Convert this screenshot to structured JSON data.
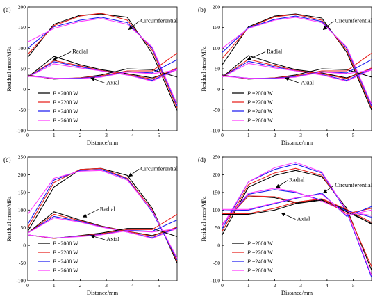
{
  "figure": {
    "y_axis_label": "Residual stress/MPa",
    "x_axis_label": "Distance/mm",
    "legend_var": "P",
    "legend_unit": " W",
    "colors": {
      "p2000": "#000000",
      "p2200": "#e8201c",
      "p2400": "#1d1df0",
      "p2600": "#ff3cff"
    }
  },
  "chart_data": [
    {
      "type": "line",
      "panel_label": "(a)",
      "xlim": [
        0,
        5.7
      ],
      "ylim": [
        -100,
        200
      ],
      "xticks": [
        0,
        1,
        2,
        3,
        4,
        5
      ],
      "yticks": [
        -100,
        -50,
        0,
        50,
        100,
        150,
        200
      ],
      "grid": false,
      "legend_position": "bottom-left",
      "x": [
        0,
        1,
        2,
        2.8,
        3.8,
        4.75,
        5.7
      ],
      "series": [
        {
          "name": "P =2000 W",
          "color": "#000000",
          "group": "Circumferential",
          "values": [
            78,
            158,
            180,
            183,
            175,
            87,
            -52
          ]
        },
        {
          "name": "P =2200 W",
          "color": "#e8201c",
          "group": "Circumferential",
          "values": [
            85,
            155,
            178,
            185,
            168,
            95,
            -45
          ]
        },
        {
          "name": "P =2400 W",
          "color": "#1d1df0",
          "group": "Circumferential",
          "values": [
            100,
            152,
            168,
            175,
            162,
            100,
            -40
          ]
        },
        {
          "name": "P =2600 W",
          "color": "#ff3cff",
          "group": "Circumferential",
          "values": [
            115,
            148,
            165,
            172,
            158,
            103,
            -36
          ]
        },
        {
          "name": "P =2000 W",
          "color": "#000000",
          "group": "Radial",
          "values": [
            30,
            80,
            60,
            48,
            38,
            28,
            48
          ]
        },
        {
          "name": "P =2200 W",
          "color": "#e8201c",
          "group": "Radial",
          "values": [
            30,
            70,
            57,
            46,
            36,
            25,
            52
          ]
        },
        {
          "name": "P =2400 W",
          "color": "#1d1df0",
          "group": "Radial",
          "values": [
            30,
            67,
            55,
            45,
            35,
            22,
            50
          ]
        },
        {
          "name": "P =2600 W",
          "color": "#ff3cff",
          "group": "Radial",
          "values": [
            30,
            62,
            52,
            45,
            35,
            20,
            48
          ]
        },
        {
          "name": "P =2000 W",
          "color": "#000000",
          "group": "Axial",
          "values": [
            35,
            25,
            28,
            35,
            50,
            48,
            30
          ]
        },
        {
          "name": "P =2200 W",
          "color": "#e8201c",
          "group": "Axial",
          "values": [
            34,
            26,
            28,
            33,
            45,
            45,
            88
          ]
        },
        {
          "name": "P =2400 W",
          "color": "#1d1df0",
          "group": "Axial",
          "values": [
            33,
            27,
            27,
            31,
            43,
            40,
            72
          ]
        },
        {
          "name": "P =2600 W",
          "color": "#ff3cff",
          "group": "Axial",
          "values": [
            32,
            27,
            26,
            30,
            42,
            38,
            47
          ]
        }
      ],
      "annotations": [
        {
          "text": "Circumferential",
          "tx": 4.3,
          "ty": 162,
          "ax": 3.85,
          "ay": 145
        },
        {
          "text": "Radial",
          "tx": 1.7,
          "ty": 88,
          "ax": 0.95,
          "ay": 70
        },
        {
          "text": "Axial",
          "tx": 3.0,
          "ty": 12,
          "ax": 2.4,
          "ay": 28
        }
      ]
    },
    {
      "type": "line",
      "panel_label": "(b)",
      "xlim": [
        0,
        5.7
      ],
      "ylim": [
        -100,
        200
      ],
      "xticks": [
        0,
        1,
        2,
        3,
        4,
        5
      ],
      "yticks": [
        -100,
        -50,
        0,
        50,
        100,
        150,
        200
      ],
      "grid": false,
      "legend_position": "bottom-left",
      "x": [
        0,
        1,
        2,
        2.8,
        3.8,
        4.75,
        5.7
      ],
      "series": [
        {
          "name": "P =2000 W",
          "color": "#000000",
          "group": "Circumferential",
          "values": [
            60,
            152,
            178,
            183,
            173,
            90,
            -50
          ]
        },
        {
          "name": "P =2200 W",
          "color": "#e8201c",
          "group": "Circumferential",
          "values": [
            75,
            150,
            176,
            182,
            168,
            95,
            -45
          ]
        },
        {
          "name": "P =2400 W",
          "color": "#1d1df0",
          "group": "Circumferential",
          "values": [
            90,
            150,
            170,
            178,
            165,
            100,
            -40
          ]
        },
        {
          "name": "P =2600 W",
          "color": "#ff3cff",
          "group": "Circumferential",
          "values": [
            100,
            148,
            168,
            175,
            162,
            103,
            -36
          ]
        },
        {
          "name": "P =2000 W",
          "color": "#000000",
          "group": "Radial",
          "values": [
            30,
            82,
            62,
            48,
            40,
            28,
            50
          ]
        },
        {
          "name": "P =2200 W",
          "color": "#e8201c",
          "group": "Radial",
          "values": [
            30,
            73,
            58,
            46,
            38,
            26,
            52
          ]
        },
        {
          "name": "P =2400 W",
          "color": "#1d1df0",
          "group": "Radial",
          "values": [
            30,
            68,
            55,
            45,
            36,
            22,
            50
          ]
        },
        {
          "name": "P =2600 W",
          "color": "#ff3cff",
          "group": "Radial",
          "values": [
            30,
            63,
            52,
            45,
            35,
            20,
            48
          ]
        },
        {
          "name": "P =2000 W",
          "color": "#000000",
          "group": "Axial",
          "values": [
            35,
            25,
            28,
            35,
            50,
            48,
            30
          ]
        },
        {
          "name": "P =2200 W",
          "color": "#e8201c",
          "group": "Axial",
          "values": [
            34,
            26,
            28,
            33,
            45,
            45,
            88
          ]
        },
        {
          "name": "P =2400 W",
          "color": "#1d1df0",
          "group": "Axial",
          "values": [
            33,
            27,
            27,
            31,
            43,
            40,
            72
          ]
        },
        {
          "name": "P =2600 W",
          "color": "#ff3cff",
          "group": "Axial",
          "values": [
            32,
            27,
            26,
            30,
            42,
            38,
            47
          ]
        }
      ],
      "annotations": [
        {
          "text": "Circumferential",
          "tx": 4.3,
          "ty": 162,
          "ax": 3.85,
          "ay": 145
        },
        {
          "text": "Radial",
          "tx": 1.7,
          "ty": 88,
          "ax": 0.95,
          "ay": 72
        },
        {
          "text": "Axial",
          "tx": 3.0,
          "ty": 12,
          "ax": 2.4,
          "ay": 28
        }
      ]
    },
    {
      "type": "line",
      "panel_label": "(c)",
      "xlim": [
        0,
        5.7
      ],
      "ylim": [
        -100,
        250
      ],
      "xticks": [
        0,
        1,
        2,
        3,
        4,
        5
      ],
      "yticks": [
        -100,
        -50,
        0,
        50,
        100,
        150,
        200,
        250
      ],
      "grid": false,
      "legend_position": "bottom-left",
      "x": [
        0,
        1,
        2,
        2.8,
        3.8,
        4.75,
        5.7
      ],
      "series": [
        {
          "name": "P =2000 W",
          "color": "#000000",
          "group": "Circumferential",
          "values": [
            40,
            165,
            215,
            218,
            198,
            105,
            -50
          ]
        },
        {
          "name": "P =2200 W",
          "color": "#e8201c",
          "group": "Circumferential",
          "values": [
            50,
            178,
            215,
            218,
            190,
            100,
            -45
          ]
        },
        {
          "name": "P =2400 W",
          "color": "#1d1df0",
          "group": "Circumferential",
          "values": [
            60,
            185,
            212,
            215,
            188,
            95,
            -40
          ]
        },
        {
          "name": "P =2600 W",
          "color": "#ff3cff",
          "group": "Circumferential",
          "values": [
            88,
            190,
            210,
            212,
            185,
            98,
            -36
          ]
        },
        {
          "name": "P =2000 W",
          "color": "#000000",
          "group": "Radial",
          "values": [
            35,
            95,
            72,
            55,
            40,
            28,
            50
          ]
        },
        {
          "name": "P =2200 W",
          "color": "#e8201c",
          "group": "Radial",
          "values": [
            35,
            88,
            70,
            54,
            40,
            26,
            52
          ]
        },
        {
          "name": "P =2400 W",
          "color": "#1d1df0",
          "group": "Radial",
          "values": [
            35,
            82,
            68,
            53,
            38,
            22,
            50
          ]
        },
        {
          "name": "P =2600 W",
          "color": "#ff3cff",
          "group": "Radial",
          "values": [
            35,
            78,
            66,
            52,
            38,
            20,
            48
          ]
        },
        {
          "name": "P =2000 W",
          "color": "#000000",
          "group": "Axial",
          "values": [
            30,
            20,
            28,
            35,
            48,
            48,
            25
          ]
        },
        {
          "name": "P =2200 W",
          "color": "#e8201c",
          "group": "Axial",
          "values": [
            30,
            20,
            27,
            33,
            45,
            45,
            88
          ]
        },
        {
          "name": "P =2400 W",
          "color": "#1d1df0",
          "group": "Axial",
          "values": [
            30,
            21,
            26,
            31,
            43,
            40,
            72
          ]
        },
        {
          "name": "P =2600 W",
          "color": "#ff3cff",
          "group": "Axial",
          "values": [
            30,
            21,
            25,
            30,
            42,
            38,
            47
          ]
        }
      ],
      "annotations": [
        {
          "text": "Circumferential",
          "tx": 4.3,
          "ty": 212,
          "ax": 3.85,
          "ay": 195
        },
        {
          "text": "Radial",
          "tx": 2.75,
          "ty": 98,
          "ax": 2.1,
          "ay": 80
        },
        {
          "text": "Axial",
          "tx": 3.0,
          "ty": 12,
          "ax": 2.4,
          "ay": 28
        }
      ]
    },
    {
      "type": "line",
      "panel_label": "(d)",
      "xlim": [
        0,
        5.7
      ],
      "ylim": [
        -100,
        250
      ],
      "xticks": [
        0,
        1,
        2,
        3,
        4,
        5
      ],
      "yticks": [
        -100,
        -50,
        0,
        50,
        100,
        150,
        200,
        250
      ],
      "grid": false,
      "legend_position": "bottom-left",
      "x": [
        0,
        1,
        2,
        2.8,
        3.8,
        4.75,
        5.7
      ],
      "series": [
        {
          "name": "P =2000 W",
          "color": "#000000",
          "group": "Circumferential",
          "values": [
            30,
            165,
            198,
            212,
            195,
            105,
            -70
          ]
        },
        {
          "name": "P =2200 W",
          "color": "#e8201c",
          "group": "Circumferential",
          "values": [
            40,
            172,
            205,
            218,
            198,
            100,
            -60
          ]
        },
        {
          "name": "P =2400 W",
          "color": "#1d1df0",
          "group": "Circumferential",
          "values": [
            48,
            180,
            215,
            230,
            205,
            95,
            -90
          ]
        },
        {
          "name": "P =2600 W",
          "color": "#ff3cff",
          "group": "Circumferential",
          "values": [
            55,
            180,
            220,
            235,
            208,
            98,
            -85
          ]
        },
        {
          "name": "P =2000 W",
          "color": "#000000",
          "group": "Radial",
          "values": [
            60,
            140,
            135,
            120,
            130,
            100,
            60
          ]
        },
        {
          "name": "P =2200 W",
          "color": "#e8201c",
          "group": "Radial",
          "values": [
            60,
            140,
            138,
            122,
            132,
            102,
            65
          ]
        },
        {
          "name": "P =2400 W",
          "color": "#1d1df0",
          "group": "Radial",
          "values": [
            60,
            145,
            158,
            150,
            128,
            98,
            80
          ]
        },
        {
          "name": "P =2600 W",
          "color": "#ff3cff",
          "group": "Radial",
          "values": [
            60,
            148,
            162,
            152,
            125,
            95,
            85
          ]
        },
        {
          "name": "P =2000 W",
          "color": "#000000",
          "group": "Axial",
          "values": [
            88,
            88,
            100,
            118,
            128,
            95,
            62
          ]
        },
        {
          "name": "P =2200 W",
          "color": "#e8201c",
          "group": "Axial",
          "values": [
            90,
            90,
            105,
            122,
            132,
            90,
            105
          ]
        },
        {
          "name": "P =2400 W",
          "color": "#1d1df0",
          "group": "Axial",
          "values": [
            98,
            100,
            118,
            133,
            148,
            82,
            110
          ]
        },
        {
          "name": "P =2600 W",
          "color": "#ff3cff",
          "group": "Axial",
          "values": [
            102,
            102,
            120,
            135,
            145,
            85,
            100
          ]
        }
      ],
      "annotations": [
        {
          "text": "Circumferential",
          "tx": 4.3,
          "ty": 165,
          "ax": 3.85,
          "ay": 148
        },
        {
          "text": "Radial",
          "tx": 2.55,
          "ty": 180,
          "ax": 2.05,
          "ay": 163
        },
        {
          "text": "Axial",
          "tx": 2.85,
          "ty": 70,
          "ax": 2.25,
          "ay": 92
        }
      ]
    }
  ]
}
